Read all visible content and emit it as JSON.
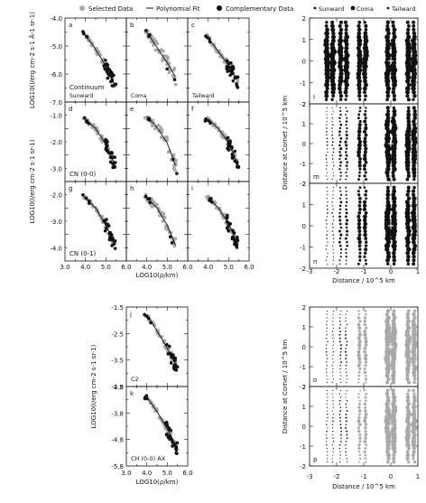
{
  "chart_data": [
    {
      "type": "scatter",
      "group": "left_brightness_profiles",
      "legend": [
        {
          "name": "Selected Data",
          "color": "#aaaaaa"
        },
        {
          "name": "Polynomial Fit",
          "color": "#111111"
        },
        {
          "name": "Complementary Data",
          "color": "#111111"
        }
      ],
      "xlabel": "LOG10(ρ/km)",
      "xticks": [
        "3.0",
        "4.0",
        "5.0",
        "6.0"
      ],
      "xlim": [
        3.0,
        6.0
      ],
      "rows": [
        {
          "ylabel": "LOG10(I/erg cm-2 s-1 Å-1 sr-1)",
          "label": "Continuum",
          "yticks": [
            "-4.0",
            "-5.0",
            "-6.0",
            "-7.0"
          ],
          "ylim": [
            -7.0,
            -4.0
          ]
        },
        {
          "ylabel": "LOG10(I/erg cm-2 s-1 sr-1)",
          "label": "CN (0-0)",
          "yticks": [
            "-1.0",
            "-2.0",
            "-3.0"
          ],
          "ylim": [
            -3.5,
            -0.5
          ]
        },
        {
          "ylabel": "LOG10(I/erg cm-2 s-1 sr-1)",
          "label": "CN (0-1)",
          "yticks": [
            "-2.0",
            "-3.0",
            "-4.0"
          ],
          "ylim": [
            -4.5,
            -1.5
          ]
        }
      ],
      "columns": [
        "Sunward",
        "Coma",
        "Tailward"
      ],
      "panels": [
        {
          "id": "a",
          "row": 0,
          "col": 0,
          "fit": [
            [
              3.9,
              -4.55
            ],
            [
              4.4,
              -5.0
            ],
            [
              4.9,
              -5.6
            ],
            [
              5.4,
              -6.35
            ]
          ]
        },
        {
          "id": "b",
          "row": 0,
          "col": 1,
          "fit": [
            [
              4.0,
              -4.5
            ],
            [
              4.5,
              -5.05
            ],
            [
              5.0,
              -5.6
            ],
            [
              5.4,
              -6.1
            ]
          ]
        },
        {
          "id": "c",
          "row": 0,
          "col": 2,
          "fit": [
            [
              3.9,
              -4.6
            ],
            [
              4.4,
              -5.1
            ],
            [
              4.9,
              -5.6
            ],
            [
              5.4,
              -6.2
            ]
          ]
        },
        {
          "id": "d",
          "row": 1,
          "col": 0,
          "fit": [
            [
              3.9,
              -1.1
            ],
            [
              4.5,
              -1.5
            ],
            [
              5.0,
              -2.1
            ],
            [
              5.4,
              -2.8
            ]
          ]
        },
        {
          "id": "e",
          "row": 1,
          "col": 1,
          "fit": [
            [
              4.0,
              -1.05
            ],
            [
              4.5,
              -1.45
            ],
            [
              5.0,
              -2.05
            ],
            [
              5.4,
              -2.9
            ]
          ]
        },
        {
          "id": "f",
          "row": 1,
          "col": 2,
          "fit": [
            [
              4.0,
              -1.15
            ],
            [
              4.5,
              -1.5
            ],
            [
              5.0,
              -2.05
            ],
            [
              5.4,
              -2.75
            ]
          ]
        },
        {
          "id": "g",
          "row": 2,
          "col": 0,
          "fit": [
            [
              3.9,
              -2.05
            ],
            [
              4.5,
              -2.5
            ],
            [
              5.0,
              -3.15
            ],
            [
              5.4,
              -3.85
            ]
          ]
        },
        {
          "id": "h",
          "row": 2,
          "col": 1,
          "fit": [
            [
              4.0,
              -2.1
            ],
            [
              4.5,
              -2.5
            ],
            [
              5.0,
              -3.15
            ],
            [
              5.4,
              -3.9
            ]
          ]
        },
        {
          "id": "i",
          "row": 2,
          "col": 2,
          "fit": [
            [
              4.0,
              -2.1
            ],
            [
              4.5,
              -2.5
            ],
            [
              5.0,
              -3.1
            ],
            [
              5.4,
              -3.8
            ]
          ]
        }
      ]
    },
    {
      "type": "scatter",
      "group": "bottom_brightness_profiles",
      "xlabel": "LOG10(ρ/km)",
      "xticks": [
        "3.0",
        "4.0",
        "5.0",
        "6.0"
      ],
      "xlim": [
        3.0,
        6.0
      ],
      "ylabel": "LOG10(I/erg cm-2 s-1 sr-1)",
      "panels": [
        {
          "id": "j",
          "label": "C2",
          "yticks": [
            "-1.5",
            "-2.5",
            "-3.5",
            "-4.5"
          ],
          "ylim": [
            -4.5,
            -1.5
          ],
          "fit": [
            [
              4.0,
              -1.8
            ],
            [
              4.5,
              -2.4
            ],
            [
              5.0,
              -3.05
            ],
            [
              5.4,
              -3.65
            ]
          ]
        },
        {
          "id": "k",
          "label": "CH (0-0) AX",
          "yticks": [
            "-2.8",
            "-3.8",
            "-4.8",
            "-5.8"
          ],
          "ylim": [
            -5.8,
            -2.8
          ],
          "fit": [
            [
              4.0,
              -3.2
            ],
            [
              4.5,
              -3.75
            ],
            [
              5.0,
              -4.4
            ],
            [
              5.4,
              -5.0
            ]
          ]
        }
      ]
    },
    {
      "type": "scatter",
      "group": "spatial_maps",
      "legend": [
        {
          "name": "Sunward",
          "style": "small-dot"
        },
        {
          "name": "Coma",
          "style": "medium-dot"
        },
        {
          "name": "Tailward",
          "style": "small-dot"
        }
      ],
      "xlabel": "Distance / 10^5 km",
      "ylabel": "Distance at Comet / 10^5 km",
      "xticks": [
        "-3",
        "-2",
        "-1",
        "0",
        "1"
      ],
      "yticks": [
        "-2",
        "-1",
        "0",
        "1",
        "2"
      ],
      "xlim": [
        -3,
        1
      ],
      "ylim": [
        -2,
        2
      ],
      "strip_x": [
        -2.25,
        -1.75,
        -1.05,
        0.0,
        0.75
      ],
      "panels": [
        {
          "id": "l",
          "group": "top",
          "sizes": [
            3.2,
            3.0,
            3.0,
            3.2,
            3.2
          ]
        },
        {
          "id": "m",
          "group": "top",
          "sizes": [
            0.8,
            1.4,
            2.2,
            3.2,
            3.0
          ]
        },
        {
          "id": "n",
          "group": "top",
          "sizes": [
            0.8,
            1.4,
            2.2,
            3.2,
            3.0
          ]
        },
        {
          "id": "o",
          "group": "bottom",
          "sizes": [
            0.7,
            0.9,
            2.0,
            3.4,
            3.0
          ]
        },
        {
          "id": "p",
          "group": "bottom",
          "sizes": [
            0.7,
            0.9,
            1.8,
            3.2,
            2.8
          ]
        }
      ]
    }
  ]
}
